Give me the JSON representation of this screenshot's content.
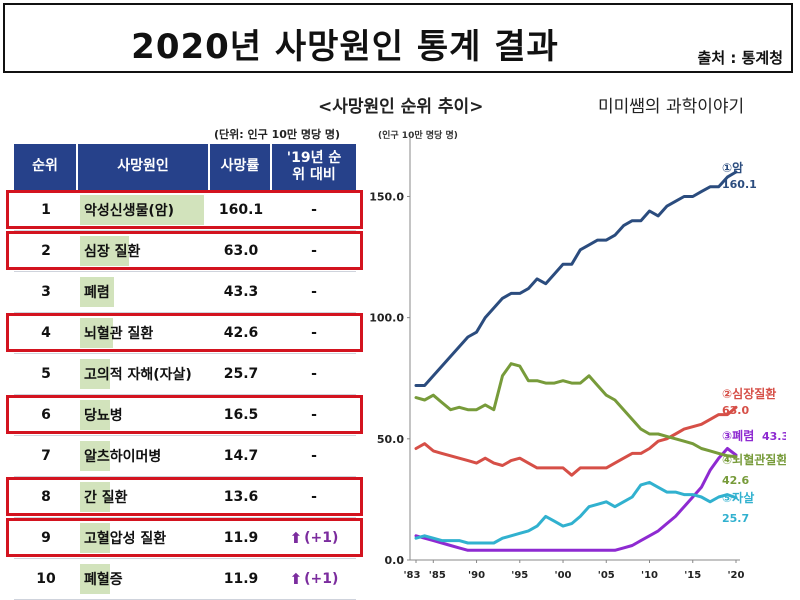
{
  "header": {
    "title": "2020년 사망원인 통계 결과",
    "source": "출처 : 통계청"
  },
  "chart_title": "<사망원인 순위 추이>",
  "blog_label": "미미쌤의 과학이야기",
  "table": {
    "unit": "(단위: 인구 10만 명당 명)",
    "columns": [
      "순위",
      "사망원인",
      "사망률",
      "'19년 순위 대비"
    ],
    "rows": [
      {
        "rank": "1",
        "cause": "악성신생물(암)",
        "rate": "160.1",
        "comp": "-",
        "up": false,
        "highlight": true,
        "bar": 160.1
      },
      {
        "rank": "2",
        "cause": "심장 질환",
        "rate": "63.0",
        "comp": "-",
        "up": false,
        "highlight": true,
        "bar": 63.0
      },
      {
        "rank": "3",
        "cause": "폐렴",
        "rate": "43.3",
        "comp": "-",
        "up": false,
        "highlight": false,
        "bar": 43.3
      },
      {
        "rank": "4",
        "cause": "뇌혈관 질환",
        "rate": "42.6",
        "comp": "-",
        "up": false,
        "highlight": true,
        "bar": 42.6
      },
      {
        "rank": "5",
        "cause": "고의적 자해(자살)",
        "rate": "25.7",
        "comp": "-",
        "up": false,
        "highlight": false,
        "bar": 25.7
      },
      {
        "rank": "6",
        "cause": "당뇨병",
        "rate": "16.5",
        "comp": "-",
        "up": false,
        "highlight": true,
        "bar": 16.5
      },
      {
        "rank": "7",
        "cause": "알츠하이머병",
        "rate": "14.7",
        "comp": "-",
        "up": false,
        "highlight": false,
        "bar": 14.7
      },
      {
        "rank": "8",
        "cause": "간 질환",
        "rate": "13.6",
        "comp": "-",
        "up": false,
        "highlight": true,
        "bar": 13.6
      },
      {
        "rank": "9",
        "cause": "고혈압성 질환",
        "rate": "11.9",
        "comp": "(+1)",
        "up": true,
        "highlight": true,
        "bar": 11.9
      },
      {
        "rank": "10",
        "cause": "폐혈증",
        "rate": "11.9",
        "comp": "(+1)",
        "up": true,
        "highlight": false,
        "bar": 11.9
      }
    ],
    "highlight_color": "#d3131f",
    "bar_color": "#d2e3bc",
    "header_color": "#26418a"
  },
  "chart_data": {
    "type": "line",
    "ylabel": "(인구 10만 명당 명)",
    "ylim": [
      0,
      170
    ],
    "xlim": [
      1983,
      2020
    ],
    "yticks": [
      0,
      50,
      100,
      150
    ],
    "ytick_labels": [
      "0.0",
      "50.0",
      "100.0",
      "150.0"
    ],
    "xticks": [
      1983,
      1985,
      1990,
      1995,
      2000,
      2005,
      2010,
      2015,
      2020
    ],
    "xtick_labels": [
      "'83",
      "'85",
      "'90",
      "'95",
      "'00",
      "'05",
      "'10",
      "'15",
      "'20"
    ],
    "grid": false,
    "series": [
      {
        "name": "①암",
        "value_label": "160.1",
        "color": "#2b4c7e",
        "x": [
          1983,
          1984,
          1985,
          1986,
          1987,
          1988,
          1989,
          1990,
          1991,
          1992,
          1993,
          1994,
          1995,
          1996,
          1997,
          1998,
          1999,
          2000,
          2001,
          2002,
          2003,
          2004,
          2005,
          2006,
          2007,
          2008,
          2009,
          2010,
          2011,
          2012,
          2013,
          2014,
          2015,
          2016,
          2017,
          2018,
          2019,
          2020
        ],
        "y": [
          72,
          72,
          76,
          80,
          84,
          88,
          92,
          94,
          100,
          104,
          108,
          110,
          110,
          112,
          116,
          114,
          118,
          122,
          122,
          128,
          130,
          132,
          132,
          134,
          138,
          140,
          140,
          144,
          142,
          146,
          148,
          150,
          150,
          152,
          154,
          154,
          158,
          160.1
        ]
      },
      {
        "name": "②심장질환",
        "value_label": "63.0",
        "color": "#d64f47",
        "x": [
          1983,
          1984,
          1985,
          1986,
          1987,
          1988,
          1989,
          1990,
          1991,
          1992,
          1993,
          1994,
          1995,
          1996,
          1997,
          1998,
          1999,
          2000,
          2001,
          2002,
          2003,
          2004,
          2005,
          2006,
          2007,
          2008,
          2009,
          2010,
          2011,
          2012,
          2013,
          2014,
          2015,
          2016,
          2017,
          2018,
          2019,
          2020
        ],
        "y": [
          46,
          48,
          45,
          44,
          43,
          42,
          41,
          40,
          42,
          40,
          39,
          41,
          42,
          40,
          38,
          38,
          38,
          38,
          35,
          38,
          38,
          38,
          38,
          40,
          42,
          44,
          44,
          46,
          49,
          50,
          52,
          54,
          55,
          56,
          58,
          60,
          60,
          63
        ]
      },
      {
        "name": "③폐렴",
        "value_label": "43.3",
        "color": "#8e2ad1",
        "x": [
          1983,
          1984,
          1985,
          1986,
          1987,
          1988,
          1989,
          1990,
          1991,
          1992,
          1993,
          1994,
          1995,
          1996,
          1997,
          1998,
          1999,
          2000,
          2001,
          2002,
          2003,
          2004,
          2005,
          2006,
          2007,
          2008,
          2009,
          2010,
          2011,
          2012,
          2013,
          2014,
          2015,
          2016,
          2017,
          2018,
          2019,
          2020
        ],
        "y": [
          10,
          9,
          8,
          7,
          6,
          5,
          4,
          4,
          4,
          4,
          4,
          4,
          4,
          4,
          4,
          4,
          4,
          4,
          4,
          4,
          4,
          4,
          4,
          4,
          5,
          6,
          8,
          10,
          12,
          15,
          18,
          22,
          26,
          30,
          37,
          42,
          46,
          43.3
        ]
      },
      {
        "name": "④뇌혈관질환",
        "value_label": "42.6",
        "color": "#779b3a",
        "x": [
          1983,
          1984,
          1985,
          1986,
          1987,
          1988,
          1989,
          1990,
          1991,
          1992,
          1993,
          1994,
          1995,
          1996,
          1997,
          1998,
          1999,
          2000,
          2001,
          2002,
          2003,
          2004,
          2005,
          2006,
          2007,
          2008,
          2009,
          2010,
          2011,
          2012,
          2013,
          2014,
          2015,
          2016,
          2017,
          2018,
          2019,
          2020
        ],
        "y": [
          67,
          66,
          68,
          65,
          62,
          63,
          62,
          62,
          64,
          62,
          76,
          81,
          80,
          74,
          74,
          73,
          73,
          74,
          73,
          73,
          76,
          72,
          68,
          66,
          62,
          58,
          54,
          52,
          52,
          51,
          50,
          49,
          48,
          46,
          45,
          44,
          43,
          42.6
        ]
      },
      {
        "name": "⑤자살",
        "value_label": "25.7",
        "color": "#31b1cf",
        "x": [
          1983,
          1984,
          1985,
          1986,
          1987,
          1988,
          1989,
          1990,
          1991,
          1992,
          1993,
          1994,
          1995,
          1996,
          1997,
          1998,
          1999,
          2000,
          2001,
          2002,
          2003,
          2004,
          2005,
          2006,
          2007,
          2008,
          2009,
          2010,
          2011,
          2012,
          2013,
          2014,
          2015,
          2016,
          2017,
          2018,
          2019,
          2020
        ],
        "y": [
          9,
          10,
          9,
          8,
          8,
          8,
          7,
          7,
          7,
          7,
          9,
          10,
          11,
          12,
          14,
          18,
          16,
          14,
          15,
          18,
          22,
          23,
          24,
          22,
          24,
          26,
          31,
          32,
          30,
          28,
          28,
          27,
          27,
          26,
          24,
          26,
          27,
          25.7
        ]
      }
    ]
  }
}
